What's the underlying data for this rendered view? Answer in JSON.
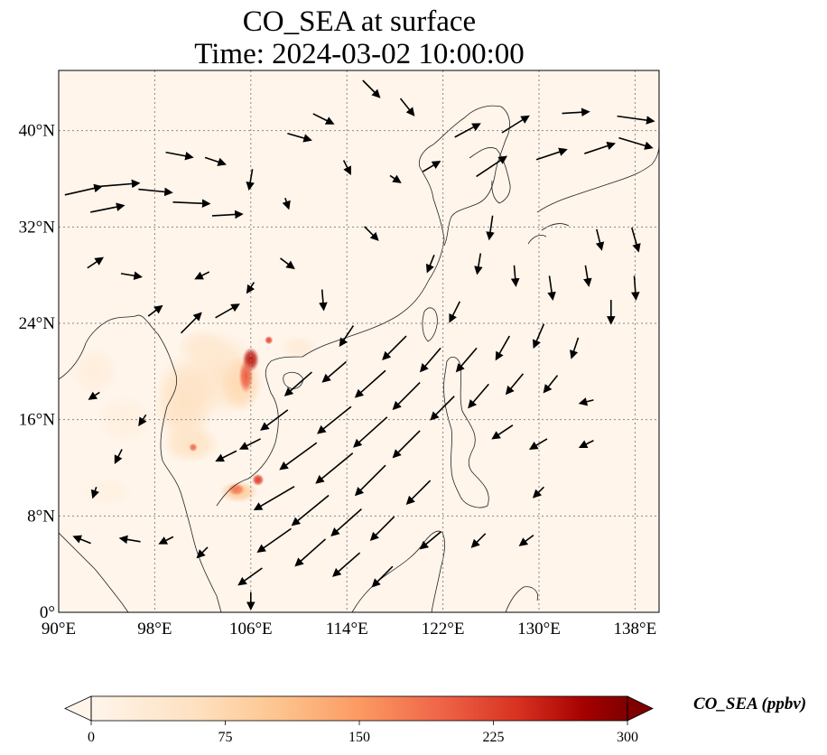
{
  "title": {
    "line1": "CO_SEA at surface",
    "line2": "Time: 2024-03-02 10:00:00"
  },
  "map": {
    "projection": "PlateCarree",
    "lon_range": [
      90,
      140
    ],
    "lat_range": [
      0,
      45
    ],
    "x_ticks": [
      {
        "value": 90,
        "label": "90°E"
      },
      {
        "value": 98,
        "label": "98°E"
      },
      {
        "value": 106,
        "label": "106°E"
      },
      {
        "value": 114,
        "label": "114°E"
      },
      {
        "value": 122,
        "label": "122°E"
      },
      {
        "value": 130,
        "label": "130°E"
      },
      {
        "value": 138,
        "label": "138°E"
      }
    ],
    "y_ticks": [
      {
        "value": 0,
        "label": "0°"
      },
      {
        "value": 8,
        "label": "8°N"
      },
      {
        "value": 16,
        "label": "16°N"
      },
      {
        "value": 24,
        "label": "24°N"
      },
      {
        "value": 32,
        "label": "32°N"
      },
      {
        "value": 40,
        "label": "40°N"
      }
    ],
    "background_color": "#fff5eb",
    "gridlines": "dotted"
  },
  "colorbar": {
    "label": "CO_SEA (ppbv)",
    "cmap": "OrRd",
    "min": 0,
    "max": 300,
    "extend": "both",
    "ticks": [
      {
        "value": 0,
        "label": "0"
      },
      {
        "value": 75,
        "label": "75"
      },
      {
        "value": 150,
        "label": "150"
      },
      {
        "value": 225,
        "label": "225"
      },
      {
        "value": 300,
        "label": "300"
      }
    ]
  },
  "concentration_field": [
    {
      "lon": 103.5,
      "lat": 19.8,
      "rx": 3.2,
      "ry": 3.6,
      "value": 45
    },
    {
      "lon": 100.5,
      "lat": 17.5,
      "rx": 2.6,
      "ry": 4.0,
      "value": 55
    },
    {
      "lon": 102.0,
      "lat": 22.0,
      "rx": 2.2,
      "ry": 1.6,
      "value": 35
    },
    {
      "lon": 105.2,
      "lat": 19.0,
      "rx": 1.8,
      "ry": 2.4,
      "value": 70
    },
    {
      "lon": 101.0,
      "lat": 14.0,
      "rx": 2.4,
      "ry": 1.6,
      "value": 50
    },
    {
      "lon": 93.0,
      "lat": 20.0,
      "rx": 2.0,
      "ry": 2.0,
      "value": 20
    },
    {
      "lon": 95.5,
      "lat": 16.0,
      "rx": 2.5,
      "ry": 2.0,
      "value": 15
    },
    {
      "lon": 94.0,
      "lat": 10.0,
      "rx": 2.2,
      "ry": 1.2,
      "value": 12
    },
    {
      "lon": 110.0,
      "lat": 22.0,
      "rx": 1.6,
      "ry": 1.0,
      "value": 25
    },
    {
      "lon": 105.0,
      "lat": 10.0,
      "rx": 1.6,
      "ry": 0.9,
      "value": 90
    },
    {
      "lon": 106.0,
      "lat": 21.0,
      "rx": 0.7,
      "ry": 1.0,
      "value": 260
    },
    {
      "lon": 105.6,
      "lat": 19.6,
      "rx": 0.6,
      "ry": 1.4,
      "value": 200
    },
    {
      "lon": 107.5,
      "lat": 22.6,
      "rx": 0.35,
      "ry": 0.35,
      "value": 220
    },
    {
      "lon": 106.6,
      "lat": 11.0,
      "rx": 0.5,
      "ry": 0.5,
      "value": 230
    },
    {
      "lon": 104.8,
      "lat": 10.2,
      "rx": 0.7,
      "ry": 0.5,
      "value": 180
    },
    {
      "lon": 101.2,
      "lat": 13.7,
      "rx": 0.35,
      "ry": 0.35,
      "value": 190
    }
  ],
  "wind_vectors": [
    {
      "lon": 92,
      "lat": 35,
      "u": 2.2,
      "v": 0.5
    },
    {
      "lon": 95,
      "lat": 35.5,
      "u": 2.4,
      "v": 0.2
    },
    {
      "lon": 98,
      "lat": 35,
      "u": 2.0,
      "v": -0.2
    },
    {
      "lon": 101,
      "lat": 34,
      "u": 2.2,
      "v": -0.1
    },
    {
      "lon": 104,
      "lat": 33,
      "u": 1.8,
      "v": 0.1
    },
    {
      "lon": 94,
      "lat": 33.5,
      "u": 2.0,
      "v": 0.4
    },
    {
      "lon": 100,
      "lat": 38,
      "u": 1.6,
      "v": -0.3
    },
    {
      "lon": 103,
      "lat": 37.5,
      "u": 1.2,
      "v": -0.4
    },
    {
      "lon": 106,
      "lat": 36,
      "u": -0.2,
      "v": -1.2
    },
    {
      "lon": 110,
      "lat": 39.5,
      "u": 1.4,
      "v": -0.4
    },
    {
      "lon": 112,
      "lat": 41,
      "u": 1.2,
      "v": -0.6
    },
    {
      "lon": 116,
      "lat": 43.5,
      "u": 1.0,
      "v": -1.0
    },
    {
      "lon": 119,
      "lat": 42,
      "u": 0.8,
      "v": -1.0
    },
    {
      "lon": 124,
      "lat": 40,
      "u": 1.5,
      "v": 0.8
    },
    {
      "lon": 128,
      "lat": 40.5,
      "u": 1.6,
      "v": 1.0
    },
    {
      "lon": 131,
      "lat": 38,
      "u": 1.8,
      "v": 0.6
    },
    {
      "lon": 135,
      "lat": 38.5,
      "u": 1.8,
      "v": 0.6
    },
    {
      "lon": 138,
      "lat": 41,
      "u": 2.2,
      "v": -0.3
    },
    {
      "lon": 138,
      "lat": 39,
      "u": 2.0,
      "v": -0.6
    },
    {
      "lon": 133,
      "lat": 41.5,
      "u": 1.6,
      "v": 0.1
    },
    {
      "lon": 126,
      "lat": 37,
      "u": 1.8,
      "v": 1.2
    },
    {
      "lon": 121,
      "lat": 37,
      "u": 1.0,
      "v": 0.6
    },
    {
      "lon": 118,
      "lat": 36,
      "u": 0.6,
      "v": -0.4
    },
    {
      "lon": 114,
      "lat": 37,
      "u": 0.4,
      "v": -0.8
    },
    {
      "lon": 109,
      "lat": 34,
      "u": 0.2,
      "v": -0.6
    },
    {
      "lon": 116,
      "lat": 31.5,
      "u": 0.8,
      "v": -0.8
    },
    {
      "lon": 109,
      "lat": 29,
      "u": 0.8,
      "v": -0.6
    },
    {
      "lon": 106,
      "lat": 27,
      "u": -0.4,
      "v": -0.6
    },
    {
      "lon": 102,
      "lat": 28,
      "u": -0.8,
      "v": -0.4
    },
    {
      "lon": 96,
      "lat": 28,
      "u": 1.2,
      "v": -0.2
    },
    {
      "lon": 93,
      "lat": 29,
      "u": 0.9,
      "v": 0.6
    },
    {
      "lon": 98,
      "lat": 25,
      "u": 0.8,
      "v": 0.6
    },
    {
      "lon": 101,
      "lat": 24,
      "u": 1.2,
      "v": 1.2
    },
    {
      "lon": 104,
      "lat": 25,
      "u": 1.4,
      "v": 0.8
    },
    {
      "lon": 112,
      "lat": 26,
      "u": 0.1,
      "v": -1.2
    },
    {
      "lon": 121,
      "lat": 29,
      "u": -0.4,
      "v": -1.0
    },
    {
      "lon": 125,
      "lat": 29,
      "u": -0.2,
      "v": -1.2
    },
    {
      "lon": 128,
      "lat": 28,
      "u": 0.1,
      "v": -1.2
    },
    {
      "lon": 131,
      "lat": 27,
      "u": 0.2,
      "v": -1.4
    },
    {
      "lon": 134,
      "lat": 28,
      "u": 0.2,
      "v": -1.2
    },
    {
      "lon": 136,
      "lat": 25,
      "u": 0.0,
      "v": -1.4
    },
    {
      "lon": 138,
      "lat": 27,
      "u": 0.1,
      "v": -1.4
    },
    {
      "lon": 138,
      "lat": 31,
      "u": 0.4,
      "v": -1.4
    },
    {
      "lon": 135,
      "lat": 31,
      "u": 0.3,
      "v": -1.2
    },
    {
      "lon": 126,
      "lat": 32,
      "u": -0.2,
      "v": -1.4
    },
    {
      "lon": 123,
      "lat": 25,
      "u": -0.6,
      "v": -1.2
    },
    {
      "lon": 118,
      "lat": 22,
      "u": -1.4,
      "v": -1.4
    },
    {
      "lon": 121,
      "lat": 21,
      "u": -1.2,
      "v": -1.4
    },
    {
      "lon": 124,
      "lat": 21,
      "u": -1.2,
      "v": -1.4
    },
    {
      "lon": 127,
      "lat": 22,
      "u": -0.8,
      "v": -1.4
    },
    {
      "lon": 130,
      "lat": 23,
      "u": -0.6,
      "v": -1.4
    },
    {
      "lon": 133,
      "lat": 22,
      "u": -0.4,
      "v": -1.2
    },
    {
      "lon": 116,
      "lat": 19,
      "u": -1.8,
      "v": -1.6
    },
    {
      "lon": 119,
      "lat": 18,
      "u": -1.6,
      "v": -1.6
    },
    {
      "lon": 122,
      "lat": 17,
      "u": -1.4,
      "v": -1.4
    },
    {
      "lon": 125,
      "lat": 18,
      "u": -1.2,
      "v": -1.4
    },
    {
      "lon": 128,
      "lat": 19,
      "u": -1.0,
      "v": -1.2
    },
    {
      "lon": 131,
      "lat": 19,
      "u": -0.8,
      "v": -1.0
    },
    {
      "lon": 134,
      "lat": 17.5,
      "u": -0.8,
      "v": -0.2
    },
    {
      "lon": 113,
      "lat": 16,
      "u": -2.0,
      "v": -1.6
    },
    {
      "lon": 116,
      "lat": 15,
      "u": -2.0,
      "v": -1.8
    },
    {
      "lon": 119,
      "lat": 14,
      "u": -1.6,
      "v": -1.6
    },
    {
      "lon": 127,
      "lat": 15,
      "u": -1.2,
      "v": -0.8
    },
    {
      "lon": 130,
      "lat": 14,
      "u": -1.0,
      "v": -0.6
    },
    {
      "lon": 134,
      "lat": 14,
      "u": -0.8,
      "v": -0.4
    },
    {
      "lon": 110,
      "lat": 13,
      "u": -2.2,
      "v": -1.6
    },
    {
      "lon": 113,
      "lat": 12,
      "u": -2.2,
      "v": -1.8
    },
    {
      "lon": 116,
      "lat": 11,
      "u": -1.8,
      "v": -1.8
    },
    {
      "lon": 120,
      "lat": 10,
      "u": -1.4,
      "v": -1.4
    },
    {
      "lon": 108,
      "lat": 9.5,
      "u": -2.4,
      "v": -1.4
    },
    {
      "lon": 111,
      "lat": 8.5,
      "u": -2.2,
      "v": -1.8
    },
    {
      "lon": 114,
      "lat": 7.5,
      "u": -1.8,
      "v": -1.6
    },
    {
      "lon": 117,
      "lat": 7,
      "u": -1.4,
      "v": -1.4
    },
    {
      "lon": 121,
      "lat": 6,
      "u": -1.2,
      "v": -1.0
    },
    {
      "lon": 125,
      "lat": 6,
      "u": -0.8,
      "v": -0.8
    },
    {
      "lon": 129,
      "lat": 6,
      "u": -0.8,
      "v": -0.6
    },
    {
      "lon": 108,
      "lat": 6,
      "u": -2.0,
      "v": -1.4
    },
    {
      "lon": 111,
      "lat": 5,
      "u": -1.8,
      "v": -1.6
    },
    {
      "lon": 114,
      "lat": 4,
      "u": -1.6,
      "v": -1.4
    },
    {
      "lon": 117,
      "lat": 3,
      "u": -1.2,
      "v": -1.2
    },
    {
      "lon": 106,
      "lat": 3,
      "u": -1.4,
      "v": -1.0
    },
    {
      "lon": 102,
      "lat": 5,
      "u": -0.6,
      "v": -0.6
    },
    {
      "lon": 99,
      "lat": 6,
      "u": -0.8,
      "v": -0.4
    },
    {
      "lon": 96,
      "lat": 6,
      "u": -1.2,
      "v": 0.2
    },
    {
      "lon": 92,
      "lat": 6,
      "u": -1.0,
      "v": 0.4
    },
    {
      "lon": 93,
      "lat": 10,
      "u": -0.2,
      "v": -0.6
    },
    {
      "lon": 95,
      "lat": 13,
      "u": -0.4,
      "v": -0.8
    },
    {
      "lon": 97,
      "lat": 16,
      "u": -0.4,
      "v": -0.6
    },
    {
      "lon": 93,
      "lat": 18,
      "u": -0.6,
      "v": -0.4
    },
    {
      "lon": 106,
      "lat": 14,
      "u": -1.2,
      "v": -0.6
    },
    {
      "lon": 104,
      "lat": 13,
      "u": -1.2,
      "v": -0.6
    },
    {
      "lon": 108,
      "lat": 16,
      "u": -1.6,
      "v": -1.2
    },
    {
      "lon": 110,
      "lat": 19,
      "u": -1.6,
      "v": -1.4
    },
    {
      "lon": 113,
      "lat": 20,
      "u": -1.4,
      "v": -1.2
    },
    {
      "lon": 114,
      "lat": 23,
      "u": -0.8,
      "v": -1.2
    },
    {
      "lon": 106,
      "lat": 1,
      "u": 0.0,
      "v": -1.0
    },
    {
      "lon": 130,
      "lat": 10,
      "u": -0.6,
      "v": -0.6
    }
  ]
}
